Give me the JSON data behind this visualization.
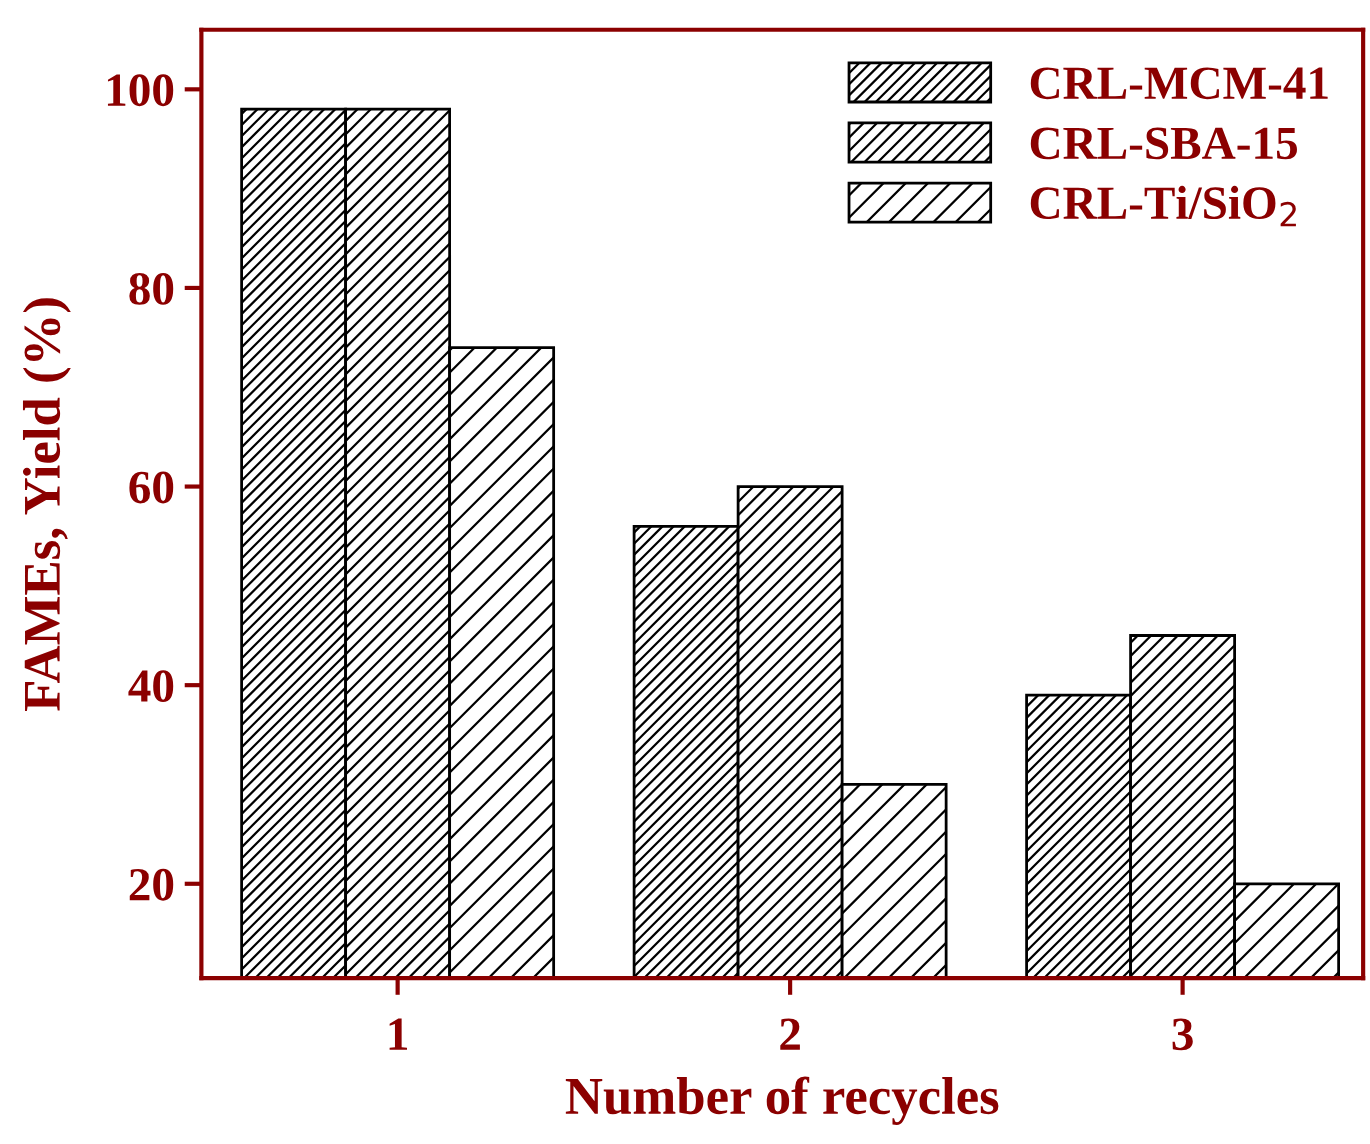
{
  "chart_data": {
    "type": "bar",
    "xlabel": "Number of recycles",
    "ylabel": "FAMEs, Yield (%)",
    "categories": [
      "1",
      "2",
      "3"
    ],
    "series": [
      {
        "name": "CRL-MCM-41",
        "color": "#000000",
        "values": [
          98,
          56,
          39
        ]
      },
      {
        "name": "CRL-SBA-15",
        "color": "#000000",
        "values": [
          98,
          60,
          45
        ]
      },
      {
        "name": "CRL-Ti/SiO$_{2}$",
        "color": "#000000",
        "values": [
          74,
          30,
          20
        ]
      }
    ],
    "ylim": [
      10.5,
      106
    ],
    "yticks": [
      20,
      40,
      60,
      80,
      100
    ],
    "grid": false,
    "legend": "top right"
  }
}
